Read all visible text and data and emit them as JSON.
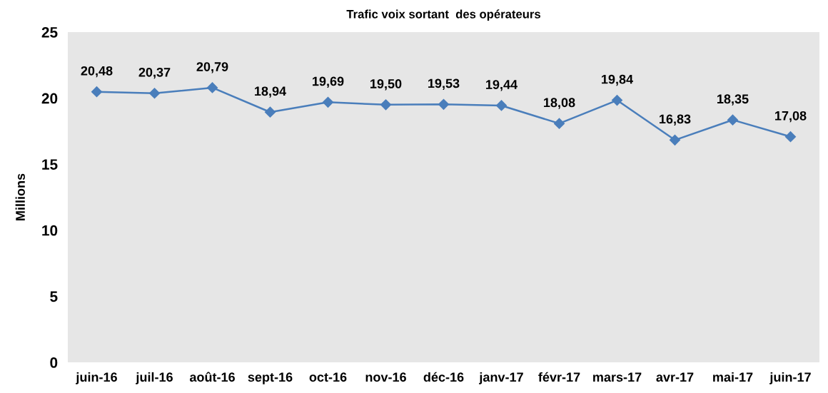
{
  "chart_data": {
    "type": "line",
    "title": "Trafic voix sortant  des opérateurs",
    "ylabel": "Millions",
    "categories": [
      "juin-16",
      "juil-16",
      "août-16",
      "sept-16",
      "oct-16",
      "nov-16",
      "déc-16",
      "janv-17",
      "févr-17",
      "mars-17",
      "avr-17",
      "mai-17",
      "juin-17"
    ],
    "series": [
      {
        "color": "#4a7ebb",
        "values": [
          20.48,
          20.37,
          20.79,
          18.94,
          19.69,
          19.5,
          19.53,
          19.44,
          18.08,
          19.84,
          16.83,
          18.35,
          17.08
        ],
        "value_labels": [
          "20,48",
          "20,37",
          "20,79",
          "18,94",
          "19,69",
          "19,50",
          "19,53",
          "19,44",
          "18,08",
          "19,84",
          "16,83",
          "18,35",
          "17,08"
        ]
      }
    ],
    "ylim": [
      0,
      25
    ],
    "yticks": [
      0,
      5,
      10,
      15,
      20,
      25
    ],
    "grid": false,
    "legend": false,
    "marker": "diamond",
    "line_style": "solid"
  }
}
